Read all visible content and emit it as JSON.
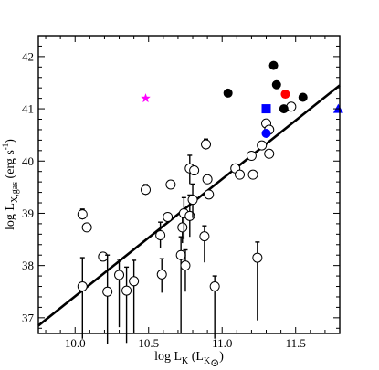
{
  "chart_data": {
    "type": "scatter",
    "title": "",
    "xlabel": {
      "main": "log L",
      "sub": "K",
      "unit_open": " (L",
      "unit_sub": "K",
      "unit_sym": "⊙",
      "unit_close": ")"
    },
    "ylabel": {
      "main": "log L",
      "sub": "X,gas",
      "unit": " (erg s",
      "sup": "-1",
      "close": ")"
    },
    "xlim": [
      9.75,
      11.8
    ],
    "ylim": [
      36.7,
      42.4
    ],
    "xticks": [
      10.0,
      10.5,
      11.0,
      11.5
    ],
    "xtick_labels": [
      "10.0",
      "10.5",
      "11.0",
      "11.5"
    ],
    "yticks": [
      37,
      38,
      39,
      40,
      41,
      42
    ],
    "ytick_labels": [
      "37",
      "38",
      "39",
      "40",
      "41",
      "42"
    ],
    "grid": false,
    "fit_line": {
      "x": [
        9.75,
        11.8
      ],
      "y": [
        36.85,
        41.45
      ]
    },
    "series": [
      {
        "marker": "open-circle",
        "color": "#000000",
        "points": [
          {
            "x": 10.05,
            "y": 38.98,
            "yerr": [
              0.1,
              0.1
            ]
          },
          {
            "x": 10.08,
            "y": 38.73
          },
          {
            "x": 10.05,
            "y": 37.6,
            "yerr": [
              1.0,
              0.55
            ]
          },
          {
            "x": 10.19,
            "y": 38.17
          },
          {
            "x": 10.22,
            "y": 37.5,
            "yerr": [
              1.0,
              0.7
            ]
          },
          {
            "x": 10.3,
            "y": 37.82,
            "yerr": [
              1.0,
              0.3
            ]
          },
          {
            "x": 10.35,
            "y": 37.52,
            "yerr": [
              1.0,
              0.45
            ]
          },
          {
            "x": 10.4,
            "y": 37.7,
            "yerr": [
              1.0,
              0.4
            ]
          },
          {
            "x": 10.48,
            "y": 39.45,
            "yerr": [
              0.1,
              0.1
            ]
          },
          {
            "x": 10.58,
            "y": 38.58,
            "yerr": [
              0.25,
              0.25
            ]
          },
          {
            "x": 10.59,
            "y": 37.83,
            "yerr": [
              0.35,
              0.3
            ]
          },
          {
            "x": 10.63,
            "y": 38.93
          },
          {
            "x": 10.65,
            "y": 39.55
          },
          {
            "x": 10.72,
            "y": 38.2,
            "yerr": [
              1.5,
              0.35
            ]
          },
          {
            "x": 10.73,
            "y": 38.73,
            "yerr": [
              0.3,
              0.3
            ]
          },
          {
            "x": 10.74,
            "y": 39.0,
            "yerr": [
              0.5,
              0.3
            ]
          },
          {
            "x": 10.75,
            "y": 38.0,
            "yerr": [
              0.5,
              0.3
            ]
          },
          {
            "x": 10.78,
            "y": 38.95,
            "yerr": [
              0.4,
              0.4
            ]
          },
          {
            "x": 10.78,
            "y": 39.86,
            "yerr": [
              0.3,
              0.25
            ]
          },
          {
            "x": 10.8,
            "y": 39.26,
            "yerr": [
              0.35,
              0.3
            ]
          },
          {
            "x": 10.81,
            "y": 39.82
          },
          {
            "x": 10.88,
            "y": 38.56,
            "yerr": [
              0.5,
              0.2
            ]
          },
          {
            "x": 10.89,
            "y": 40.32,
            "yerr": [
              0.1,
              0.1
            ]
          },
          {
            "x": 10.9,
            "y": 39.65
          },
          {
            "x": 10.91,
            "y": 39.36
          },
          {
            "x": 10.95,
            "y": 37.6,
            "yerr": [
              1.0,
              0.2
            ]
          },
          {
            "x": 11.09,
            "y": 39.86
          },
          {
            "x": 11.12,
            "y": 39.74
          },
          {
            "x": 11.2,
            "y": 40.1
          },
          {
            "x": 11.21,
            "y": 39.74
          },
          {
            "x": 11.24,
            "y": 38.15,
            "yerr": [
              1.2,
              0.3
            ]
          },
          {
            "x": 11.27,
            "y": 40.3
          },
          {
            "x": 11.3,
            "y": 40.72
          },
          {
            "x": 11.32,
            "y": 40.6
          },
          {
            "x": 11.32,
            "y": 40.14
          },
          {
            "x": 11.47,
            "y": 41.04
          }
        ]
      },
      {
        "marker": "filled-circle",
        "color": "#000000",
        "points": [
          {
            "x": 11.04,
            "y": 41.3
          },
          {
            "x": 11.35,
            "y": 41.83
          },
          {
            "x": 11.37,
            "y": 41.46
          },
          {
            "x": 11.42,
            "y": 41.0
          },
          {
            "x": 11.55,
            "y": 41.22
          }
        ]
      },
      {
        "marker": "filled-circle",
        "color": "#ff0000",
        "points": [
          {
            "x": 11.43,
            "y": 41.28
          }
        ]
      },
      {
        "marker": "filled-circle",
        "color": "#0000ff",
        "points": [
          {
            "x": 11.3,
            "y": 40.53
          }
        ]
      },
      {
        "marker": "filled-square",
        "color": "#0000ff",
        "points": [
          {
            "x": 11.3,
            "y": 41.0
          }
        ]
      },
      {
        "marker": "filled-triangle",
        "color": "#0000ff",
        "points": [
          {
            "x": 11.79,
            "y": 41.0
          }
        ]
      },
      {
        "marker": "star",
        "color": "#ff00ff",
        "points": [
          {
            "x": 10.48,
            "y": 41.2
          }
        ]
      }
    ]
  }
}
